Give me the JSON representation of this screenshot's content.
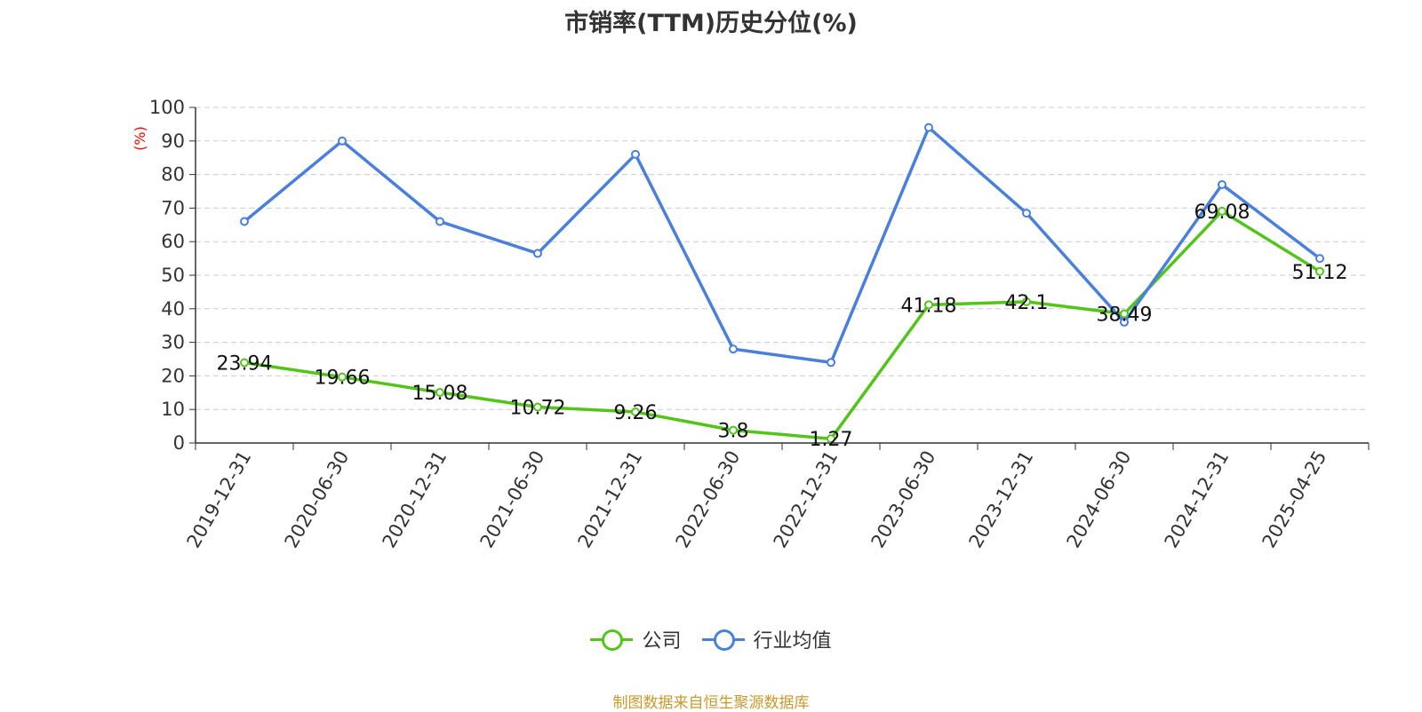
{
  "title": "市销率(TTM)历史分位(%)",
  "source": "制图数据来自恒生聚源数据库",
  "colors": {
    "company": "#52c41a",
    "industry": "#4a7fdc",
    "ylabel": "#ff0000",
    "source": "#c89a2c"
  },
  "chart_data": {
    "type": "line",
    "title": "市销率(TTM)历史分位(%)",
    "xlabel": "",
    "ylabel": "(%)",
    "ylim": [
      0,
      100
    ],
    "yticks": [
      0,
      10,
      20,
      30,
      40,
      50,
      60,
      70,
      80,
      90,
      100
    ],
    "grid": "horizontal dashed",
    "legend_position": "bottom-center",
    "categories": [
      "2019-12-31",
      "2020-06-30",
      "2020-12-31",
      "2021-06-30",
      "2021-12-31",
      "2022-06-30",
      "2022-12-31",
      "2023-06-30",
      "2023-12-31",
      "2024-06-30",
      "2024-12-31",
      "2025-04-25"
    ],
    "series": [
      {
        "name": "公司",
        "color": "#52c41a",
        "show_labels": true,
        "values": [
          23.94,
          19.66,
          15.08,
          10.72,
          9.26,
          3.8,
          1.27,
          41.18,
          42.1,
          38.49,
          69.08,
          51.12
        ]
      },
      {
        "name": "行业均值",
        "color": "#4a7fdc",
        "show_labels": false,
        "values": [
          66,
          90,
          66,
          56.5,
          86,
          28,
          24,
          94,
          68.5,
          36,
          77,
          55
        ]
      }
    ]
  }
}
